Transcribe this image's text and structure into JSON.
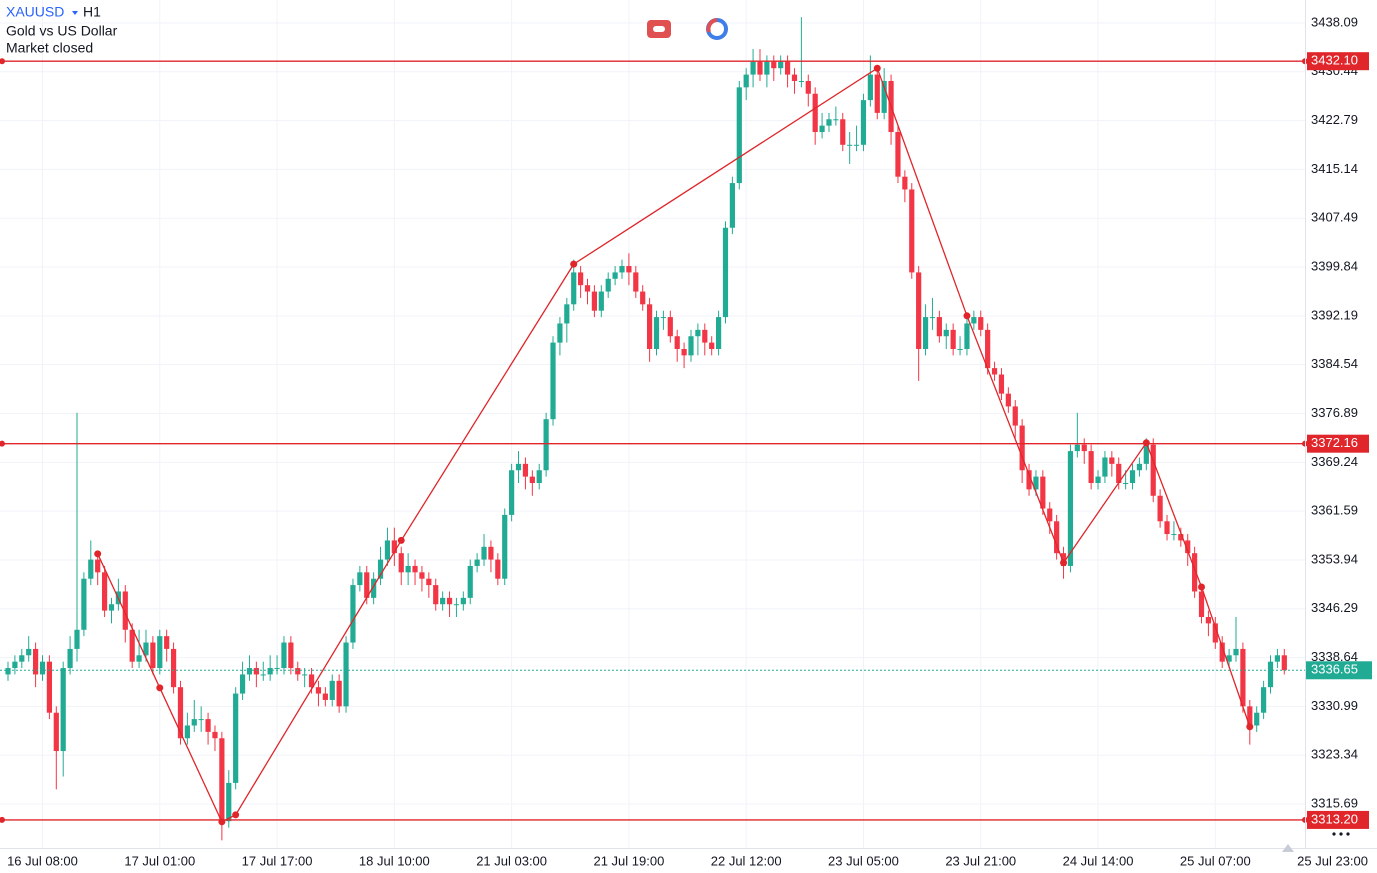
{
  "header": {
    "symbol": "XAUUSD",
    "timeframe": "H1",
    "name": "Gold vs US Dollar",
    "status": "Market closed"
  },
  "chart_data": {
    "type": "candlestick",
    "up_color": "#22ab94",
    "down_color": "#f23645",
    "grid": true,
    "series": [
      {
        "name": "XAUUSD",
        "open": [
          3336,
          3337,
          3338,
          3339,
          3340,
          3336,
          3338,
          3330,
          3324,
          3337,
          3340,
          3343,
          3351,
          3354,
          3352,
          3346,
          3347,
          3349,
          3343,
          3338,
          3339,
          3341,
          3337,
          3342,
          3340,
          3334,
          3326,
          3328,
          3329,
          3329,
          3327,
          3326,
          3313,
          3319,
          3333,
          3336,
          3337,
          3336,
          3336,
          3337,
          3337,
          3341,
          3337,
          3336,
          3336,
          3334,
          3333,
          3332,
          3335,
          3331,
          3341,
          3350,
          3352,
          3348,
          3351,
          3354,
          3357,
          3355,
          3352,
          3353,
          3352,
          3351,
          3350,
          3347,
          3348,
          3347,
          3347,
          3348,
          3353,
          3354,
          3356,
          3354,
          3351,
          3361,
          3368,
          3369,
          3367,
          3366,
          3368,
          3376,
          3388,
          3391,
          3394,
          3399,
          3397,
          3396,
          3393,
          3396,
          3398,
          3399,
          3400,
          3399,
          3396,
          3394,
          3387,
          3392,
          3392,
          3389,
          3387,
          3386,
          3389,
          3390,
          3388,
          3387,
          3392,
          3406,
          3413,
          3428,
          3430,
          3432,
          3430,
          3432,
          3431,
          3432,
          3430,
          3429,
          3429,
          3427,
          3421,
          3422,
          3423,
          3423,
          3419,
          3419,
          3419,
          3426,
          3430,
          3424,
          3429,
          3421,
          3414,
          3412,
          3399,
          3387,
          3392,
          3392,
          3389,
          3390,
          3387,
          3387,
          3391,
          3392,
          3390,
          3384,
          3383,
          3380,
          3378,
          3375,
          3368,
          3365,
          3367,
          3362,
          3360,
          3355,
          3353,
          3371,
          3372,
          3371,
          3366,
          3367,
          3370,
          3369,
          3366,
          3366,
          3368,
          3369,
          3372,
          3364,
          3360,
          3358,
          3358,
          3357,
          3355,
          3349,
          3345,
          3344,
          3341,
          3338,
          3339,
          3340,
          3331,
          3328,
          3330,
          3334,
          3338,
          3339
        ],
        "high": [
          3338,
          3339,
          3340,
          3342,
          3341,
          3339,
          3339,
          3331,
          3338,
          3342,
          3377,
          3352,
          3357,
          3355,
          3353,
          3348,
          3351,
          3350,
          3344,
          3343,
          3343,
          3342,
          3343,
          3343,
          3341,
          3335,
          3330,
          3332,
          3331,
          3330,
          3328,
          3327,
          3321,
          3334,
          3338,
          3339,
          3338,
          3338,
          3339,
          3339,
          3342,
          3342,
          3338,
          3337,
          3337,
          3335,
          3334,
          3336,
          3336,
          3342,
          3351,
          3353,
          3353,
          3352,
          3356,
          3359,
          3359,
          3356,
          3355,
          3354,
          3353,
          3352,
          3351,
          3349,
          3349,
          3348,
          3349,
          3354,
          3355,
          3358,
          3357,
          3355,
          3362,
          3369,
          3371,
          3370,
          3368,
          3369,
          3377,
          3389,
          3392,
          3395,
          3401,
          3400,
          3398,
          3397,
          3397,
          3399,
          3400,
          3401,
          3402,
          3400,
          3397,
          3395,
          3393,
          3393,
          3393,
          3390,
          3388,
          3390,
          3391,
          3391,
          3389,
          3393,
          3407,
          3414,
          3429,
          3431,
          3434,
          3434,
          3433,
          3433,
          3433,
          3433,
          3431,
          3439,
          3430,
          3428,
          3424,
          3424,
          3425,
          3424,
          3421,
          3422,
          3427,
          3433,
          3431,
          3431,
          3430,
          3422,
          3415,
          3413,
          3400,
          3394,
          3395,
          3393,
          3391,
          3391,
          3389,
          3392,
          3393,
          3393,
          3391,
          3385,
          3384,
          3381,
          3379,
          3376,
          3369,
          3368,
          3368,
          3363,
          3361,
          3356,
          3372,
          3377,
          3373,
          3372,
          3368,
          3371,
          3371,
          3370,
          3368,
          3369,
          3370,
          3373,
          3373,
          3365,
          3361,
          3360,
          3359,
          3358,
          3356,
          3350,
          3346,
          3345,
          3342,
          3340,
          3345,
          3341,
          3332,
          3331,
          3335,
          3339,
          3340,
          3340
        ],
        "low": [
          3335,
          3336,
          3337,
          3338,
          3334,
          3335,
          3329,
          3318,
          3320,
          3336,
          3338,
          3342,
          3350,
          3350,
          3345,
          3344,
          3346,
          3341,
          3337,
          3337,
          3338,
          3336,
          3336,
          3338,
          3333,
          3325,
          3325,
          3327,
          3327,
          3325,
          3324,
          3310,
          3312,
          3318,
          3332,
          3335,
          3334,
          3335,
          3335,
          3336,
          3336,
          3336,
          3335,
          3334,
          3333,
          3331,
          3331,
          3331,
          3330,
          3330,
          3340,
          3349,
          3347,
          3347,
          3350,
          3353,
          3353,
          3350,
          3350,
          3350,
          3349,
          3348,
          3346,
          3346,
          3345,
          3345,
          3346,
          3347,
          3352,
          3353,
          3352,
          3350,
          3350,
          3360,
          3366,
          3365,
          3364,
          3365,
          3367,
          3375,
          3386,
          3388,
          3393,
          3395,
          3394,
          3392,
          3392,
          3395,
          3397,
          3398,
          3397,
          3395,
          3393,
          3385,
          3386,
          3390,
          3388,
          3385,
          3384,
          3385,
          3386,
          3386,
          3386,
          3386,
          3391,
          3405,
          3412,
          3426,
          3428,
          3429,
          3428,
          3429,
          3430,
          3428,
          3427,
          3428,
          3425,
          3419,
          3420,
          3421,
          3422,
          3418,
          3416,
          3418,
          3418,
          3425,
          3423,
          3423,
          3419,
          3413,
          3410,
          3398,
          3382,
          3386,
          3390,
          3388,
          3387,
          3386,
          3386,
          3386,
          3390,
          3389,
          3383,
          3382,
          3379,
          3377,
          3373,
          3366,
          3364,
          3364,
          3361,
          3358,
          3354,
          3351,
          3352,
          3370,
          3369,
          3365,
          3365,
          3366,
          3367,
          3365,
          3365,
          3365,
          3367,
          3368,
          3363,
          3359,
          3357,
          3357,
          3356,
          3353,
          3348,
          3344,
          3342,
          3340,
          3337,
          3337,
          3338,
          3330,
          3325,
          3327,
          3329,
          3333,
          3337,
          3336
        ],
        "close": [
          3337,
          3338,
          3339,
          3340,
          3336,
          3338,
          3330,
          3324,
          3337,
          3340,
          3343,
          3351,
          3354,
          3352,
          3346,
          3347,
          3349,
          3343,
          3338,
          3339,
          3341,
          3337,
          3342,
          3340,
          3334,
          3326,
          3328,
          3329,
          3329,
          3327,
          3326,
          3313,
          3319,
          3333,
          3336,
          3337,
          3336,
          3336,
          3337,
          3337,
          3341,
          3337,
          3336,
          3336,
          3334,
          3333,
          3332,
          3335,
          3331,
          3341,
          3350,
          3352,
          3348,
          3351,
          3354,
          3357,
          3355,
          3352,
          3353,
          3352,
          3351,
          3350,
          3347,
          3348,
          3347,
          3347,
          3348,
          3353,
          3354,
          3356,
          3354,
          3351,
          3361,
          3368,
          3369,
          3367,
          3366,
          3368,
          3376,
          3388,
          3391,
          3394,
          3399,
          3397,
          3396,
          3393,
          3396,
          3398,
          3399,
          3400,
          3399,
          3396,
          3394,
          3387,
          3392,
          3392,
          3389,
          3387,
          3386,
          3389,
          3390,
          3388,
          3387,
          3392,
          3406,
          3413,
          3428,
          3430,
          3432,
          3430,
          3432,
          3431,
          3432,
          3430,
          3429,
          3429,
          3427,
          3421,
          3422,
          3423,
          3423,
          3419,
          3419,
          3419,
          3426,
          3430,
          3424,
          3429,
          3421,
          3414,
          3412,
          3399,
          3387,
          3392,
          3392,
          3389,
          3390,
          3387,
          3387,
          3391,
          3392,
          3390,
          3384,
          3383,
          3380,
          3378,
          3375,
          3368,
          3365,
          3367,
          3362,
          3360,
          3355,
          3353,
          3371,
          3372,
          3371,
          3366,
          3367,
          3370,
          3369,
          3366,
          3366,
          3368,
          3369,
          3372,
          3364,
          3360,
          3358,
          3358,
          3357,
          3355,
          3349,
          3345,
          3344,
          3341,
          3338,
          3339,
          3340,
          3331,
          3328,
          3330,
          3334,
          3338,
          3339,
          3336.65
        ]
      }
    ],
    "xlim": [
      -1.16,
      188
    ],
    "xticks": [
      {
        "value": 5,
        "label": "16 Jul 08:00"
      },
      {
        "value": 22,
        "label": "17 Jul 01:00"
      },
      {
        "value": 39,
        "label": "17 Jul 17:00"
      },
      {
        "value": 56,
        "label": "18 Jul 10:00"
      },
      {
        "value": 73,
        "label": "21 Jul 03:00"
      },
      {
        "value": 90,
        "label": "21 Jul 19:00"
      },
      {
        "value": 107,
        "label": "22 Jul 12:00"
      },
      {
        "value": 124,
        "label": "23 Jul 05:00"
      },
      {
        "value": 141,
        "label": "23 Jul 21:00"
      },
      {
        "value": 158,
        "label": "24 Jul 14:00"
      },
      {
        "value": 175,
        "label": "25 Jul 07:00"
      },
      {
        "value": 192,
        "label": "25 Jul 23:00"
      }
    ],
    "ylim": [
      3308.8,
      3441.69
    ],
    "yticks": [
      3438.09,
      3430.44,
      3422.79,
      3415.14,
      3407.49,
      3399.84,
      3392.19,
      3384.54,
      3376.89,
      3369.24,
      3361.59,
      3353.94,
      3346.29,
      3338.64,
      3330.99,
      3323.34,
      3315.69
    ],
    "price_lines": [
      {
        "value": 3432.1,
        "label": "3432.10"
      },
      {
        "value": 3372.16,
        "label": "3372.16"
      },
      {
        "value": 3313.2,
        "label": "3313.20"
      }
    ],
    "price_line_color": "#e0262b",
    "current_price": 3336.65,
    "current_price_color": "#22ab94",
    "zigzag": {
      "color": "#e0262b",
      "x": [
        13,
        22,
        31,
        33,
        57,
        82,
        126,
        139,
        153,
        165,
        173,
        180
      ],
      "y": [
        3354.9,
        3333.9,
        3312.9,
        3314,
        3357,
        3400.3,
        3431,
        3392.2,
        3353.5,
        3372.3,
        3349.7,
        3327.8
      ]
    }
  }
}
